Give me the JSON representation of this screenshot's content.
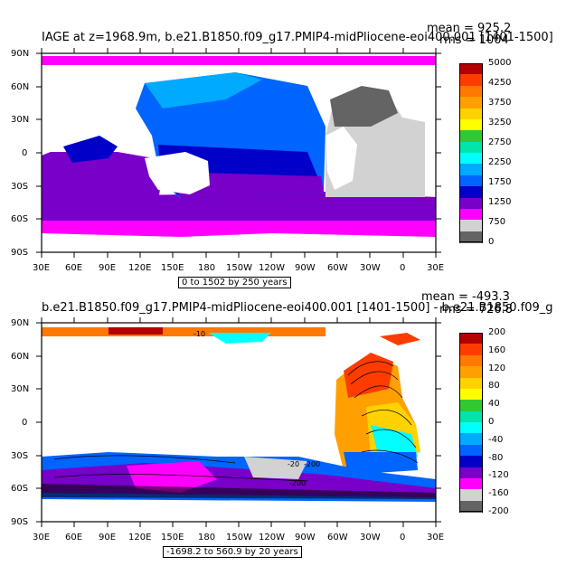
{
  "panels": [
    {
      "title": "IAGE at z=1968.9m, b.e21.B1850.f09_g17.PMIP4-midPliocene-eoi400.001 [1401-1500]",
      "mean": "mean = 925.2",
      "rms": "rms = 1004",
      "range": "0 to 1502 by 250 years",
      "lat_labels": [
        "90N",
        "60N",
        "30N",
        "0",
        "30S",
        "60S",
        "90S"
      ],
      "lon_labels": [
        "30E",
        "60E",
        "90E",
        "120E",
        "150E",
        "180",
        "150W",
        "120W",
        "90W",
        "60W",
        "30W",
        "0",
        "30E"
      ],
      "colorbar": {
        "labels": [
          "5000",
          "4250",
          "3750",
          "3250",
          "2750",
          "2250",
          "1750",
          "1250",
          "750",
          "0"
        ],
        "colors": [
          "#b40000",
          "#ff3c00",
          "#ff7800",
          "#ffa000",
          "#ffd200",
          "#ffff00",
          "#32c832",
          "#00e6aa",
          "#00ffff",
          "#00aaff",
          "#0064ff",
          "#0000c8",
          "#7800c8",
          "#ff00ff",
          "#d2d2d2",
          "#646464"
        ]
      }
    },
    {
      "title": "b.e21.B1850.f09_g17.PMIP4-midPliocene-eoi400.001 [1401-1500] - b.e21.B1850.f09_g",
      "mean": "mean = -493.3",
      "rms": "rms = 726.8",
      "range": "-1698.2 to 560.9 by 20 years",
      "lat_labels": [
        "90N",
        "60N",
        "30N",
        "0",
        "30S",
        "60S",
        "90S"
      ],
      "lon_labels": [
        "30E",
        "60E",
        "90E",
        "120E",
        "150E",
        "180",
        "150W",
        "120W",
        "90W",
        "60W",
        "30W",
        "0",
        "30E"
      ],
      "contour_labels": [
        "-10",
        "-20",
        "-200",
        "-200"
      ],
      "colorbar": {
        "labels": [
          "200",
          "160",
          "120",
          "80",
          "40",
          "0",
          "-40",
          "-80",
          "-120",
          "-160",
          "-200"
        ],
        "colors": [
          "#b40000",
          "#ff3c00",
          "#ff7800",
          "#ffa000",
          "#ffd200",
          "#ffff00",
          "#32c832",
          "#00e6aa",
          "#00ffff",
          "#00aaff",
          "#0064ff",
          "#0000c8",
          "#7800c8",
          "#ff00ff",
          "#d2d2d2",
          "#646464"
        ]
      }
    }
  ]
}
